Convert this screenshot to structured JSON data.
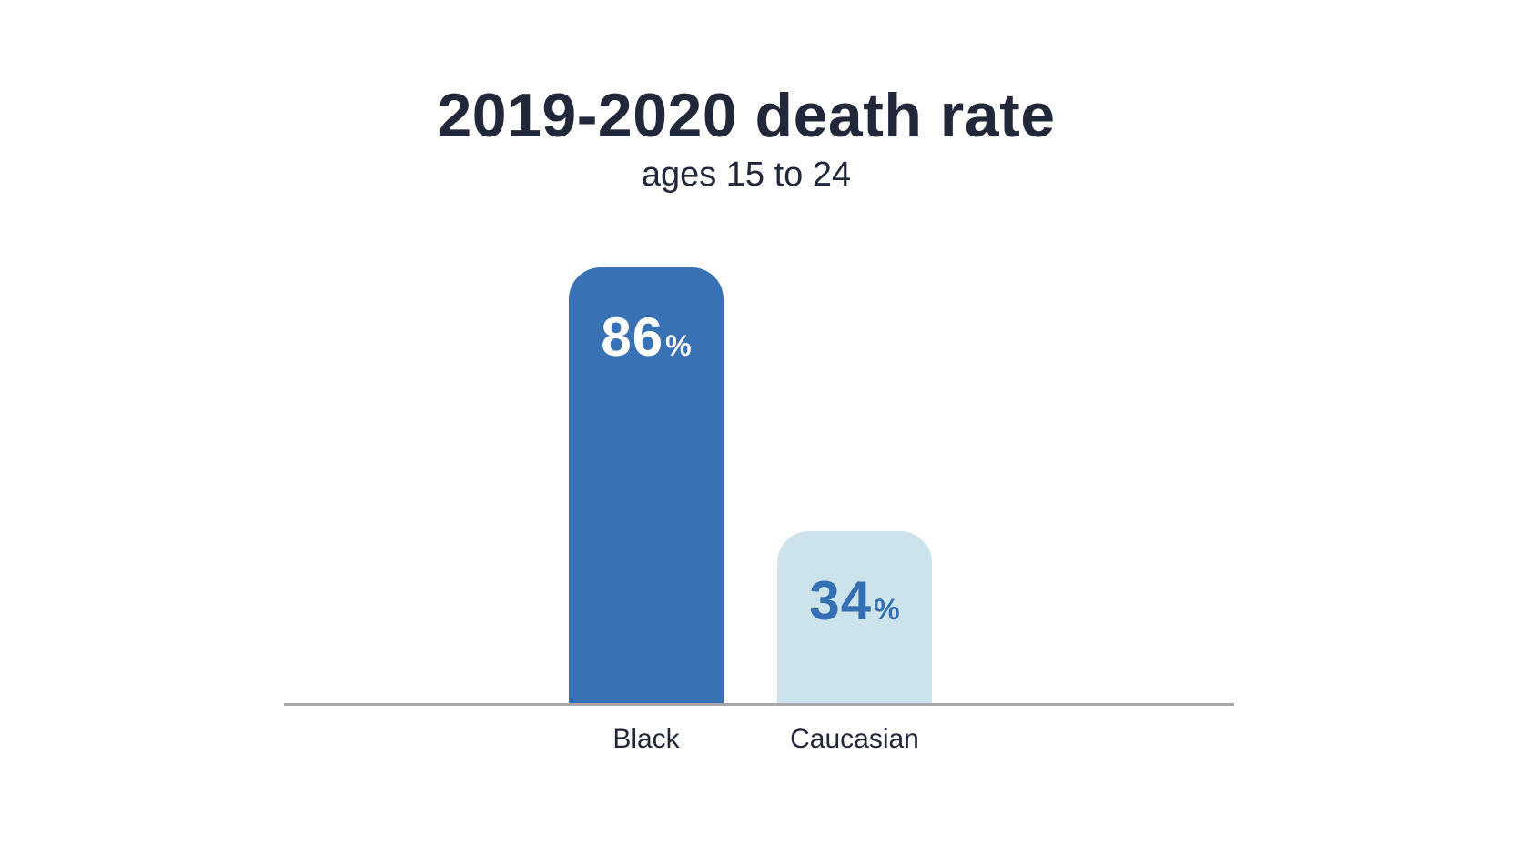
{
  "chart_data": {
    "type": "bar",
    "title": "2019-2020 death rate",
    "subtitle": "ages 15 to 24",
    "categories": [
      "Black",
      "Caucasian"
    ],
    "values": [
      86,
      34
    ],
    "value_suffix": "%",
    "ylim": [
      0,
      100
    ],
    "grid": false,
    "legend": false,
    "bar_colors": [
      "#3871b4",
      "#cce3ec"
    ],
    "value_label_colors": [
      "#ffffff",
      "#336fb2"
    ],
    "text_color": "#222739",
    "axis_line_color": "#a6a8ab",
    "background": "#ffffff"
  }
}
